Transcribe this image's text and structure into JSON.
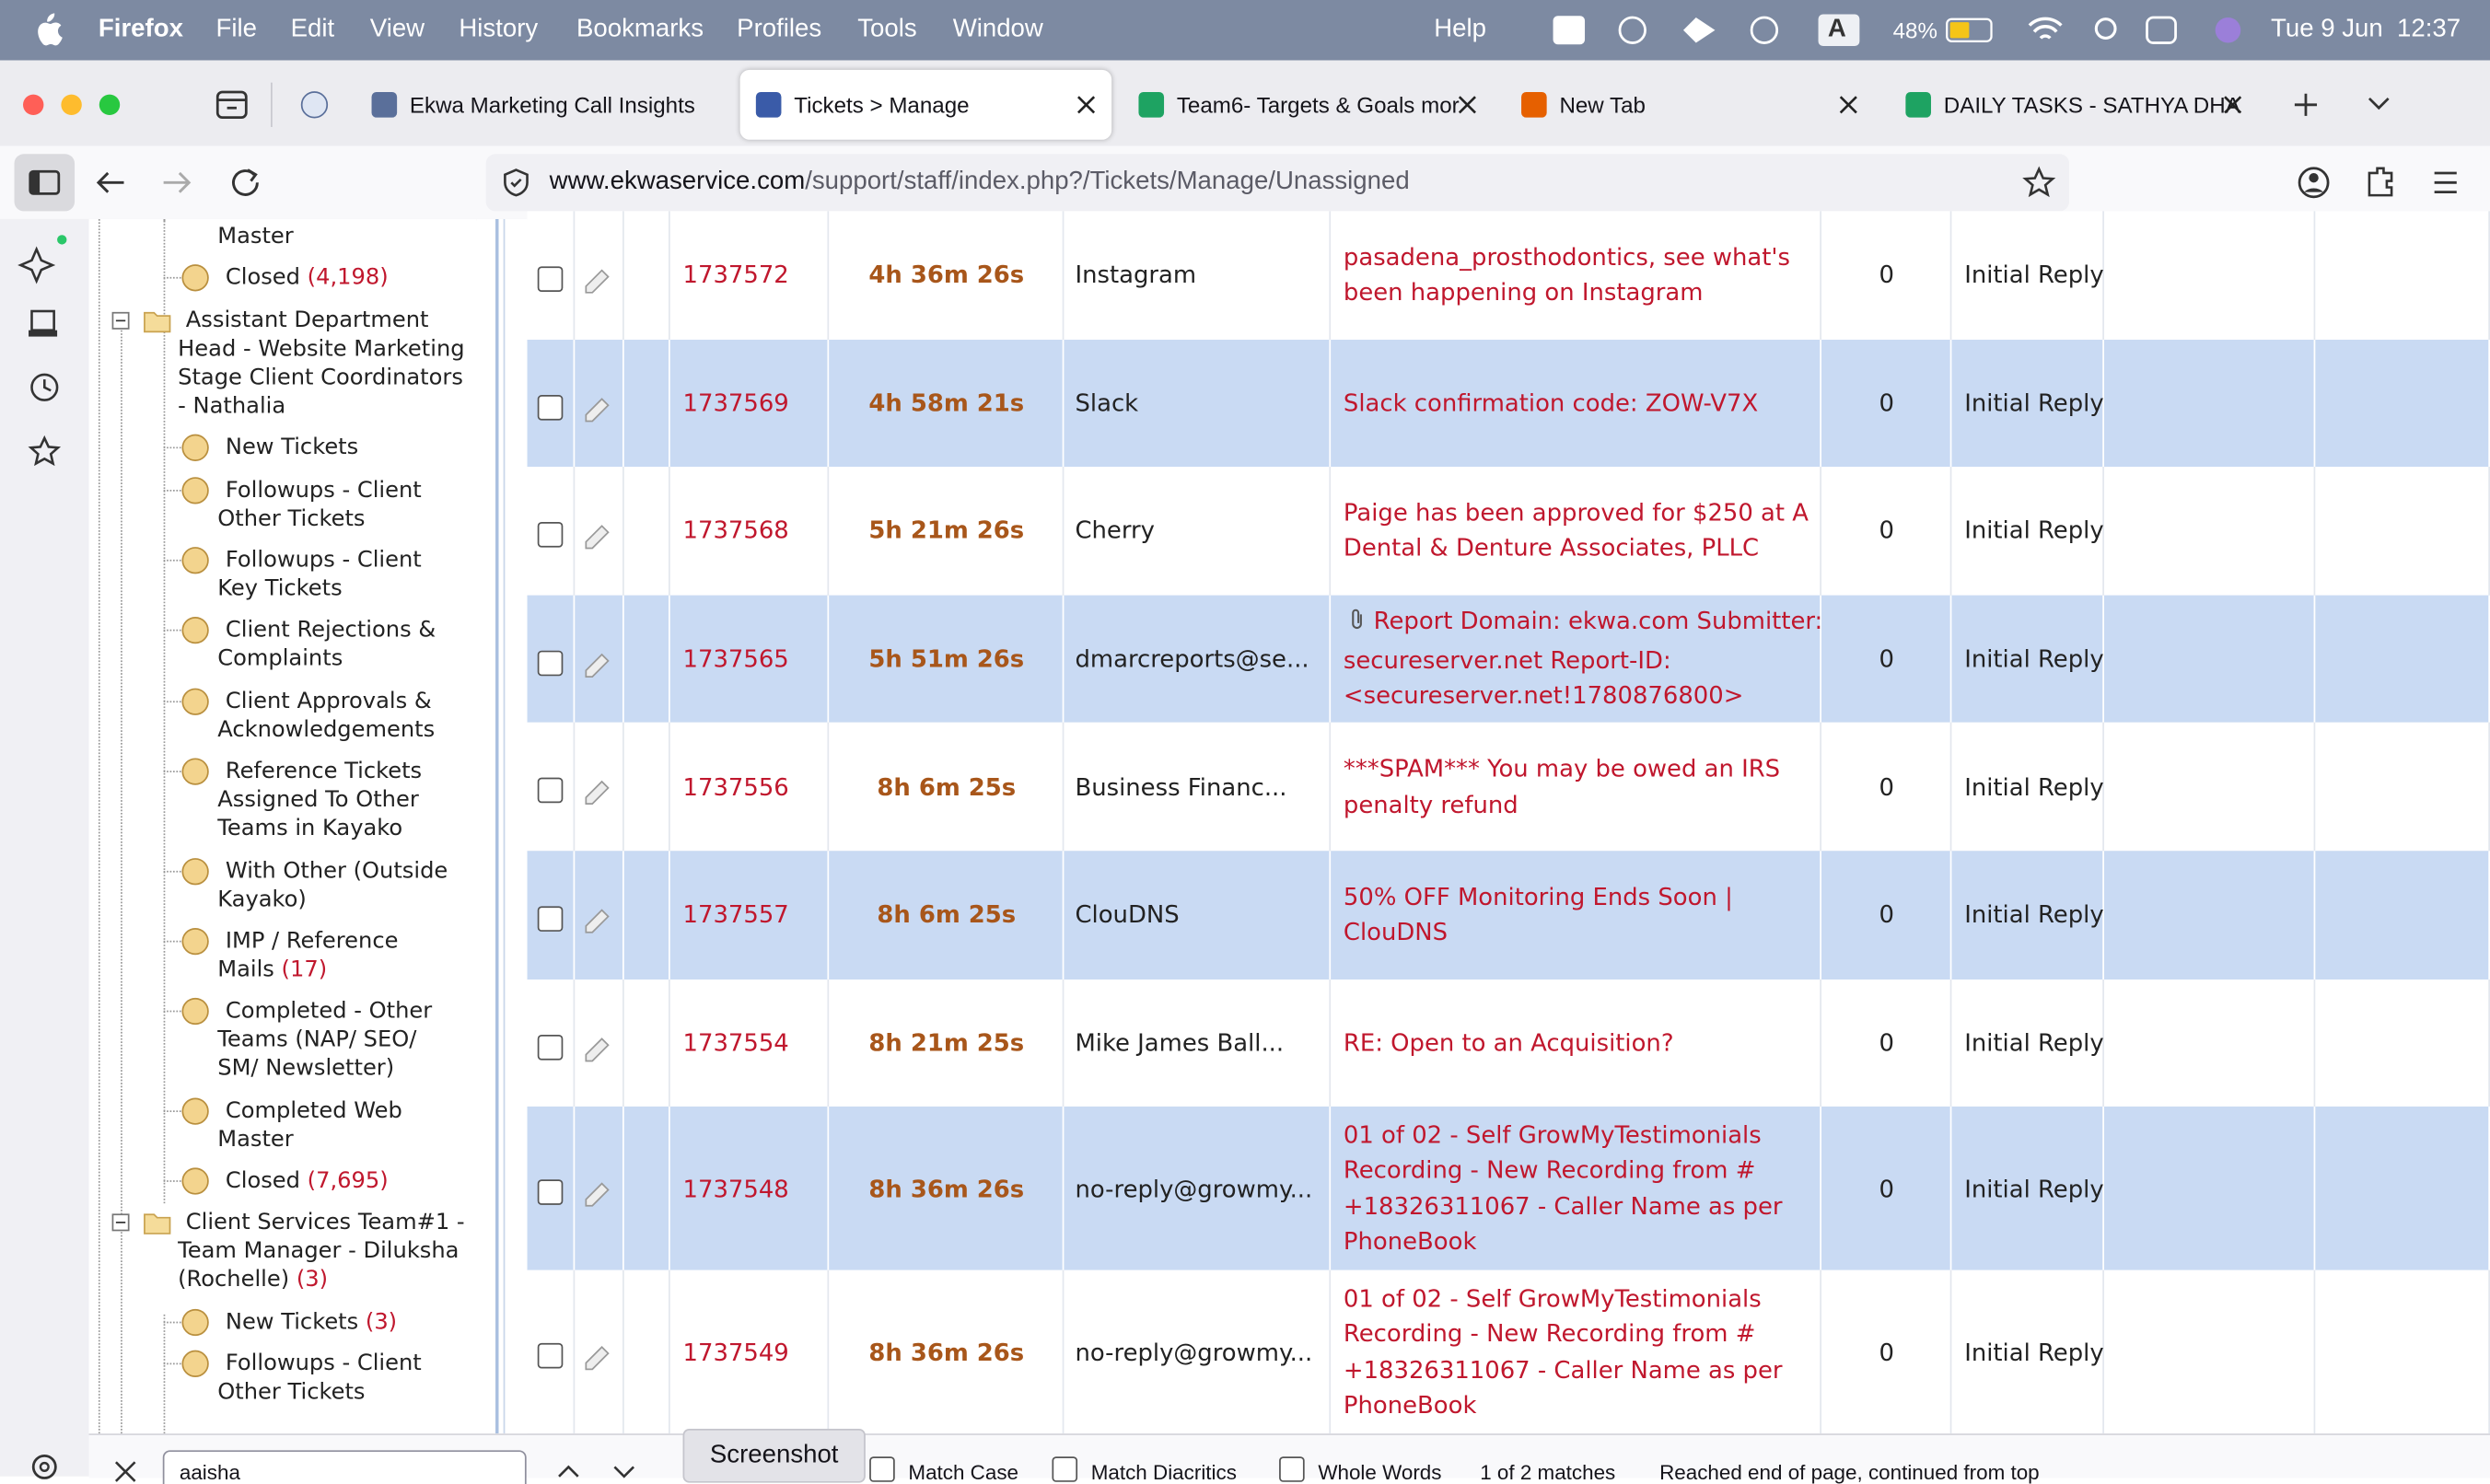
{
  "menubar": {
    "app": "Firefox",
    "menus": [
      "File",
      "Edit",
      "View",
      "History",
      "Bookmarks",
      "Profiles",
      "Tools",
      "Window",
      "Help"
    ],
    "input_source": "A",
    "battery": "48%",
    "clock": "Tue 9 Jun  12:37"
  },
  "tabs": [
    {
      "title": "Ekwa Marketing Call Insights"
    },
    {
      "title": "Tickets > Manage",
      "active": true
    },
    {
      "title": "Team6- Targets & Goals mor"
    },
    {
      "title": "New Tab"
    },
    {
      "title": "DAILY TASKS - SATHYA DHA"
    }
  ],
  "address_bar": {
    "host": "www.ekwaservice.com",
    "path": "/support/staff/index.php?/Tickets/Manage/Unassigned"
  },
  "tree": [
    {
      "kind": "item",
      "lines": [
        "Master"
      ],
      "continued": true
    },
    {
      "kind": "item",
      "lines": [
        "Closed"
      ],
      "count": "(4,198)"
    },
    {
      "kind": "folder",
      "lines": [
        "Assistant Department",
        "Head - Website Marketing",
        "Stage Client Coordinators",
        "- Nathalia"
      ]
    },
    {
      "kind": "item",
      "lines": [
        "New Tickets"
      ]
    },
    {
      "kind": "item",
      "lines": [
        "Followups - Client",
        "Other Tickets"
      ]
    },
    {
      "kind": "item",
      "lines": [
        "Followups - Client",
        "Key Tickets"
      ]
    },
    {
      "kind": "item",
      "lines": [
        "Client Rejections &",
        "Complaints"
      ]
    },
    {
      "kind": "item",
      "lines": [
        "Client Approvals &",
        "Acknowledgements"
      ]
    },
    {
      "kind": "item",
      "lines": [
        "Reference Tickets",
        "Assigned To Other",
        "Teams in Kayako"
      ]
    },
    {
      "kind": "item",
      "lines": [
        "With Other (Outside",
        "Kayako)"
      ]
    },
    {
      "kind": "item",
      "lines": [
        "IMP / Reference",
        "Mails"
      ],
      "count": "(17)"
    },
    {
      "kind": "item",
      "lines": [
        "Completed - Other",
        "Teams (NAP/ SEO/",
        "SM/ Newsletter)"
      ]
    },
    {
      "kind": "item",
      "lines": [
        "Completed Web",
        "Master"
      ]
    },
    {
      "kind": "item",
      "lines": [
        "Closed"
      ],
      "count": "(7,695)"
    },
    {
      "kind": "folder",
      "lines": [
        "Client Services Team#1 -",
        "Team Manager - Diluksha",
        "(Rochelle)"
      ],
      "count": "(3)"
    },
    {
      "kind": "item",
      "lines": [
        "New Tickets"
      ],
      "count": "(3)"
    },
    {
      "kind": "item",
      "lines": [
        "Followups - Client",
        "Other Tickets"
      ]
    }
  ],
  "tickets": [
    {
      "id": "1737572",
      "age": "4h 36m 26s",
      "from": "Instagram",
      "subject": [
        "pasadena_prosthodontics, see what's",
        "been happening on Instagram"
      ],
      "replies": 0,
      "status": "Initial Reply"
    },
    {
      "id": "1737569",
      "age": "4h 58m 21s",
      "from": "Slack",
      "subject": [
        "Slack confirmation code: ZOW-V7X"
      ],
      "replies": 0,
      "status": "Initial Reply"
    },
    {
      "id": "1737568",
      "age": "5h 21m 26s",
      "from": "Cherry",
      "subject": [
        "Paige has been approved for $250 at A",
        "Dental & Denture Associates, PLLC"
      ],
      "replies": 0,
      "status": "Initial Reply"
    },
    {
      "id": "1737565",
      "age": "5h 51m 26s",
      "from": "dmarcreports@se...",
      "subject": [
        "Report Domain: ekwa.com Submitter:",
        "secureserver.net Report-ID:",
        "<secureserver.net!1780876800>"
      ],
      "attachment": true,
      "replies": 0,
      "status": "Initial Reply"
    },
    {
      "id": "1737556",
      "age": "8h 6m 25s",
      "from": "Business Financ...",
      "subject": [
        "***SPAM*** You may be owed an IRS",
        "penalty refund"
      ],
      "replies": 0,
      "status": "Initial Reply"
    },
    {
      "id": "1737557",
      "age": "8h 6m 25s",
      "from": "ClouDNS",
      "subject": [
        "50% OFF Monitoring Ends Soon |",
        "ClouDNS"
      ],
      "replies": 0,
      "status": "Initial Reply"
    },
    {
      "id": "1737554",
      "age": "8h 21m 25s",
      "from": "Mike James Ball...",
      "subject": [
        "RE: Open to an Acquisition?"
      ],
      "replies": 0,
      "status": "Initial Reply"
    },
    {
      "id": "1737548",
      "age": "8h 36m 26s",
      "from": "no-reply@growmy...",
      "subject": [
        "01 of 02 - Self GrowMyTestimonials",
        "Recording - New Recording from #",
        "+18326311067 - Caller Name as per",
        "PhoneBook"
      ],
      "replies": 0,
      "status": "Initial Reply"
    },
    {
      "id": "1737549",
      "age": "8h 36m 26s",
      "from": "no-reply@growmy...",
      "subject": [
        "01 of 02 - Self GrowMyTestimonials",
        "Recording - New Recording from #",
        "+18326311067 - Caller Name as per",
        "PhoneBook"
      ],
      "replies": 0,
      "status": "Initial Reply"
    }
  ],
  "find_bar": {
    "query": "aaisha",
    "options": [
      "Match Case",
      "Match Diacritics",
      "Whole Words"
    ],
    "result": "1 of 2 matches",
    "status": "Reached end of page, continued from top"
  },
  "screenshot_button": "Screenshot"
}
